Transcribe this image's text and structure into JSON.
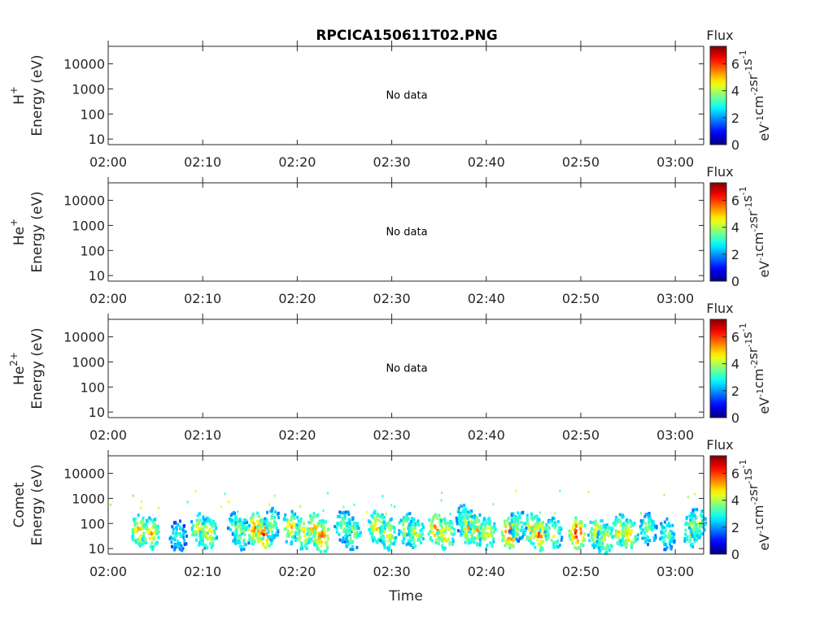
{
  "chart_data": {
    "type": "heatmap",
    "title": "RPCICA150611T02.PNG",
    "xlabel": "Time",
    "x_ticks": [
      "02:00",
      "02:10",
      "02:20",
      "02:30",
      "02:40",
      "02:50",
      "03:00"
    ],
    "x_range_minutes": [
      0,
      63
    ],
    "y_scale": "log",
    "y_ticks": [
      "10",
      "100",
      "1000",
      "10000"
    ],
    "y_range_eV": [
      6,
      50000
    ],
    "colorbar": {
      "label": "Flux",
      "units": "eV-1cm-2sr-1s-1",
      "ticks": [
        "0",
        "2",
        "4",
        "6"
      ],
      "range": [
        0,
        7.3
      ],
      "colormap": "jet"
    },
    "panels": [
      {
        "species": "H+",
        "ylabel": "Energy (eV)",
        "status": "No data"
      },
      {
        "species": "He+",
        "ylabel": "Energy (eV)",
        "status": "No data"
      },
      {
        "species": "He2+",
        "ylabel": "Energy (eV)",
        "status": "No data"
      },
      {
        "species": "Comet",
        "ylabel": "Energy (eV)",
        "status": "",
        "blobs": [
          {
            "t": 3.2,
            "e": 60,
            "v": 5.6
          },
          {
            "t": 4.4,
            "e": 45,
            "v": 5.5
          },
          {
            "t": 7.3,
            "e": 35,
            "v": 3.5
          },
          {
            "t": 9.5,
            "e": 70,
            "v": 5.0
          },
          {
            "t": 10.5,
            "e": 45,
            "v": 5.3
          },
          {
            "t": 13.5,
            "e": 80,
            "v": 4.3
          },
          {
            "t": 14.0,
            "e": 45,
            "v": 4.5
          },
          {
            "t": 15.5,
            "e": 70,
            "v": 6.3
          },
          {
            "t": 16.4,
            "e": 40,
            "v": 6.6
          },
          {
            "t": 17.2,
            "e": 110,
            "v": 4.2
          },
          {
            "t": 19.2,
            "e": 80,
            "v": 5.3
          },
          {
            "t": 20.5,
            "e": 45,
            "v": 5.2
          },
          {
            "t": 21.7,
            "e": 70,
            "v": 5.8
          },
          {
            "t": 22.5,
            "e": 35,
            "v": 6.2
          },
          {
            "t": 24.8,
            "e": 90,
            "v": 4.2
          },
          {
            "t": 25.7,
            "e": 45,
            "v": 4.5
          },
          {
            "t": 28.3,
            "e": 90,
            "v": 5.4
          },
          {
            "t": 29.5,
            "e": 45,
            "v": 5.0
          },
          {
            "t": 31.5,
            "e": 70,
            "v": 4.8
          },
          {
            "t": 32.4,
            "e": 45,
            "v": 4.8
          },
          {
            "t": 34.6,
            "e": 70,
            "v": 6.1
          },
          {
            "t": 35.6,
            "e": 45,
            "v": 5.7
          },
          {
            "t": 37.5,
            "e": 180,
            "v": 4.0
          },
          {
            "t": 38.0,
            "e": 80,
            "v": 5.7
          },
          {
            "t": 39.0,
            "e": 60,
            "v": 5.6
          },
          {
            "t": 40.0,
            "e": 45,
            "v": 5.1
          },
          {
            "t": 42.4,
            "e": 50,
            "v": 6.8
          },
          {
            "t": 43.2,
            "e": 100,
            "v": 4.0
          },
          {
            "t": 44.7,
            "e": 70,
            "v": 5.6
          },
          {
            "t": 45.5,
            "e": 40,
            "v": 6.1
          },
          {
            "t": 47.0,
            "e": 45,
            "v": 4.8
          },
          {
            "t": 49.5,
            "e": 45,
            "v": 6.9
          },
          {
            "t": 51.6,
            "e": 50,
            "v": 5.2
          },
          {
            "t": 52.5,
            "e": 25,
            "v": 5.0
          },
          {
            "t": 54.0,
            "e": 60,
            "v": 5.3
          },
          {
            "t": 55.0,
            "e": 40,
            "v": 5.6
          },
          {
            "t": 57.0,
            "e": 70,
            "v": 4.1
          },
          {
            "t": 59.0,
            "e": 40,
            "v": 3.8
          },
          {
            "t": 61.6,
            "e": 60,
            "v": 4.8
          },
          {
            "t": 62.2,
            "e": 110,
            "v": 4.5
          }
        ]
      }
    ]
  }
}
